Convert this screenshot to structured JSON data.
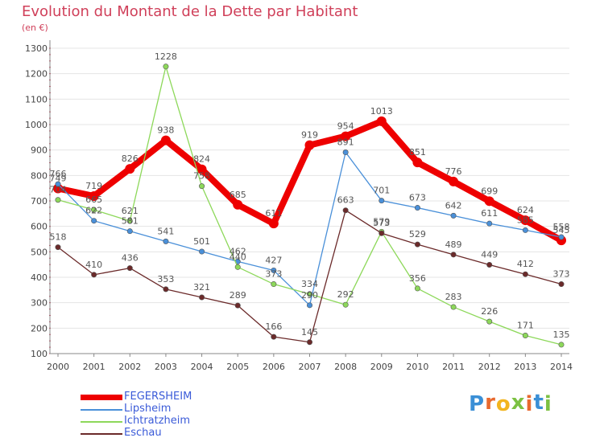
{
  "header": {
    "title": "Evolution du Montant de la Dette par Habitant",
    "subtitle": "(en €)"
  },
  "logo": {
    "text": "Proxiti",
    "letter_colors": [
      "#3a8fd6",
      "#e8692e",
      "#f2b51f",
      "#7cc142",
      "#e8692e",
      "#3a8fd6",
      "#7cc142"
    ]
  },
  "colors": {
    "title": "#d0405a",
    "legend_text": "#3b5bd8",
    "axis": "#888888",
    "grid": "#e4e4e4",
    "tick_marks": "#d0405a"
  },
  "chart_data": {
    "type": "line",
    "title": "Evolution du Montant de la Dette par Habitant",
    "subtitle": "(en €)",
    "xlabel": "",
    "ylabel": "",
    "x": [
      2000,
      2001,
      2002,
      2003,
      2004,
      2005,
      2006,
      2007,
      2008,
      2009,
      2010,
      2011,
      2012,
      2013,
      2014
    ],
    "ylim": [
      100,
      1300
    ],
    "yticks": [
      100,
      200,
      300,
      400,
      500,
      600,
      700,
      800,
      900,
      1000,
      1100,
      1200,
      1300
    ],
    "grid": "horizontal",
    "legend_position": "bottom-left",
    "series": [
      {
        "name": "FEGERSHEIM",
        "color": "#ee0000",
        "style": "thick",
        "values": [
          749,
          719,
          826,
          938,
          824,
          685,
          611,
          919,
          954,
          1013,
          851,
          776,
          699,
          624,
          545
        ],
        "labels": [
          "749",
          "719",
          "826",
          "938",
          "824",
          "685",
          "611",
          "919",
          "954",
          "1013",
          "851",
          "776",
          "699",
          "624",
          "545"
        ]
      },
      {
        "name": "Lipsheim",
        "color": "#4a90d9",
        "style": "thin",
        "values": [
          766,
          622,
          581,
          541,
          501,
          462,
          427,
          290,
          891,
          701,
          673,
          642,
          611,
          585,
          558
        ],
        "labels": [
          "766",
          "622",
          "581",
          "541",
          "501",
          "462",
          "427",
          "290",
          "891",
          "701",
          "673",
          "642",
          "611",
          "585",
          "558"
        ]
      },
      {
        "name": "Ichtratzheim",
        "color": "#8dd85a",
        "style": "thin",
        "values": [
          704,
          665,
          621,
          1228,
          758,
          440,
          373,
          334,
          292,
          579,
          356,
          283,
          226,
          171,
          135
        ],
        "labels": [
          "704",
          "665",
          "621",
          "1228",
          "758",
          "440",
          "373",
          "334",
          "292",
          "579",
          "356",
          "283",
          "226",
          "171",
          "135"
        ]
      },
      {
        "name": "Eschau",
        "color": "#6b2a2a",
        "style": "thin",
        "values": [
          518,
          410,
          436,
          353,
          321,
          289,
          166,
          145,
          663,
          573,
          529,
          489,
          449,
          412,
          373
        ],
        "labels": [
          "518",
          "410",
          "436",
          "353",
          "321",
          "289",
          "166",
          "145",
          "663",
          "573",
          "529",
          "489",
          "449",
          "412",
          "373"
        ]
      }
    ]
  }
}
